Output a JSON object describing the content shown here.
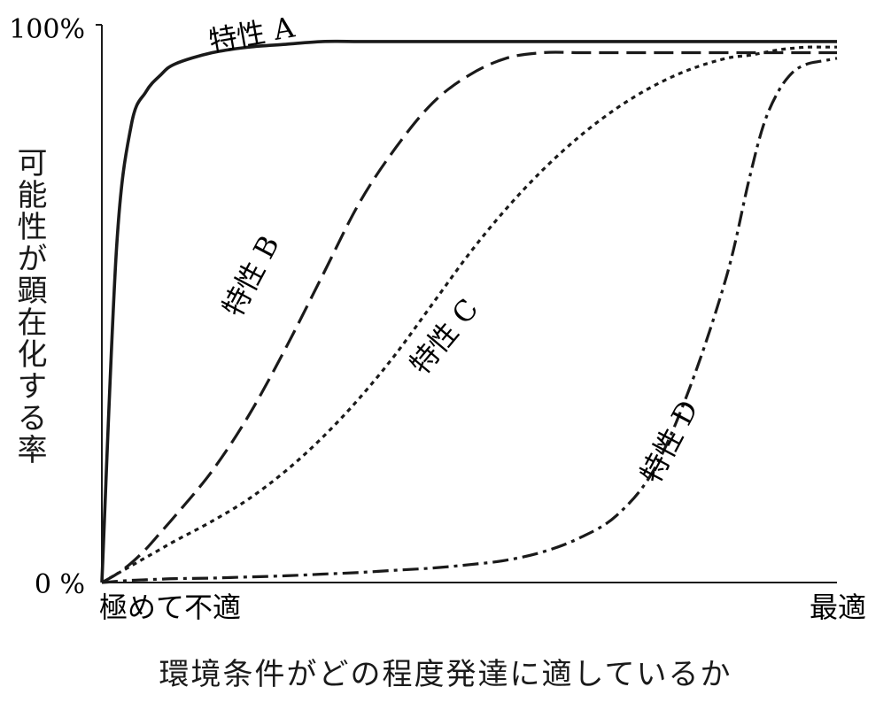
{
  "chart_data": {
    "type": "line",
    "ylabel": "可能性が顕在化する率",
    "xlabel": "環境条件がどの程度発達に適しているか",
    "y_ticks": [
      "100%",
      "0 %"
    ],
    "x_ticks": [
      "極めて不適",
      "最適"
    ],
    "ylim": [
      0,
      100
    ],
    "xlim": [
      0,
      100
    ],
    "grid": false,
    "x": [
      0,
      2,
      4,
      6,
      8,
      10,
      15,
      20,
      25,
      30,
      35,
      40,
      45,
      50,
      55,
      60,
      65,
      70,
      75,
      80,
      85,
      88,
      90,
      92,
      94,
      96,
      98,
      100
    ],
    "series": [
      {
        "name": "特性A",
        "style": "solid",
        "values": [
          0,
          60,
          82,
          88,
          91,
          93,
          95,
          96,
          96.5,
          97,
          97,
          97,
          97,
          97,
          97,
          97,
          97,
          97,
          97,
          97,
          97,
          97,
          97,
          97,
          97,
          97,
          97,
          97
        ]
      },
      {
        "name": "特性B",
        "style": "dashed",
        "values": [
          0,
          1.5,
          3.5,
          6,
          9,
          12,
          20,
          30,
          42,
          55,
          68,
          78,
          86,
          91,
          94,
          95,
          95,
          95,
          95,
          95,
          95,
          95,
          95,
          95,
          95,
          95,
          95,
          95
        ]
      },
      {
        "name": "特性C",
        "style": "dotted",
        "values": [
          0,
          1.5,
          3,
          4.5,
          6,
          7.5,
          11,
          15,
          20,
          26,
          33,
          41,
          50,
          59,
          67,
          74,
          80,
          85,
          89,
          92,
          94,
          94.5,
          95,
          95.5,
          95.8,
          96,
          96,
          96
        ]
      },
      {
        "name": "特性D",
        "style": "dashdot",
        "values": [
          0,
          0.2,
          0.4,
          0.5,
          0.6,
          0.7,
          0.8,
          1,
          1.2,
          1.5,
          1.8,
          2.2,
          2.6,
          3.2,
          4,
          5.5,
          8,
          12,
          20,
          35,
          55,
          72,
          82,
          88,
          91.5,
          93,
          93.5,
          94
        ]
      }
    ],
    "series_labels": [
      "特性 A",
      "特性 B",
      "特性 C",
      "特性 D"
    ]
  }
}
